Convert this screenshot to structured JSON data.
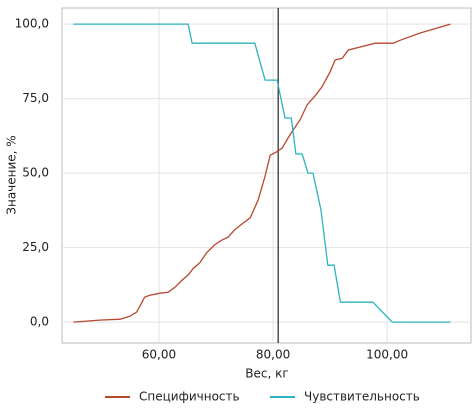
{
  "chart_data": {
    "type": "line",
    "xlabel": "Вес, кг",
    "ylabel": "Значение, %",
    "xlim": [
      43,
      114.7
    ],
    "ylim": [
      -7,
      105.4
    ],
    "xticks": [
      {
        "value": 60,
        "label": "60,00"
      },
      {
        "value": 80,
        "label": "80,00"
      },
      {
        "value": 100,
        "label": "100,00"
      }
    ],
    "yticks": [
      {
        "value": 0,
        "label": "0,0"
      },
      {
        "value": 25,
        "label": "25,0"
      },
      {
        "value": 50,
        "label": "50,0"
      },
      {
        "value": 75,
        "label": "75,0"
      },
      {
        "value": 100,
        "label": "100,0"
      }
    ],
    "grid": true,
    "legend": "bottom",
    "vline": 80.9,
    "series": [
      {
        "name": "Специфичность",
        "color": "#b8472e",
        "x": [
          45,
          49.6,
          53.2,
          54.9,
          56.1,
          57.5,
          58.4,
          60.2,
          61.6,
          62.8,
          64,
          65.1,
          66,
          67.2,
          68.4,
          69.8,
          71,
          72.1,
          73.3,
          74.6,
          76,
          77.4,
          78.6,
          79.5,
          80.5,
          81.6,
          83,
          84.7,
          86,
          87.4,
          88.6,
          90,
          90.9,
          92.1,
          93.2,
          95.3,
          97.9,
          101.1,
          102.3,
          105.8,
          111.1
        ],
        "values": [
          0,
          0.7,
          1,
          2,
          3.4,
          8.4,
          9,
          9.7,
          10,
          11.7,
          14,
          15.8,
          18,
          20,
          23.4,
          26,
          27.5,
          28.5,
          31,
          33,
          35,
          41,
          49,
          56,
          57,
          58.4,
          63,
          67.8,
          73,
          76,
          79,
          84,
          88,
          88.5,
          91.3,
          92.3,
          93.6,
          93.6,
          94.6,
          97,
          100
        ]
      },
      {
        "name": "Чувствительность",
        "color": "#2bb3c0",
        "x": [
          45,
          65.1,
          65.8,
          76.8,
          78.6,
          80.7,
          82.1,
          83.2,
          84,
          85.1,
          86.1,
          87,
          88.4,
          89.6,
          90.7,
          91.8,
          97.5,
          100.9,
          111.1
        ],
        "values": [
          100,
          100,
          93.6,
          93.6,
          81.2,
          81.2,
          68.5,
          68.5,
          56.4,
          56.4,
          50,
          50,
          37.6,
          19.1,
          19.1,
          6.7,
          6.7,
          0,
          0
        ]
      }
    ]
  }
}
